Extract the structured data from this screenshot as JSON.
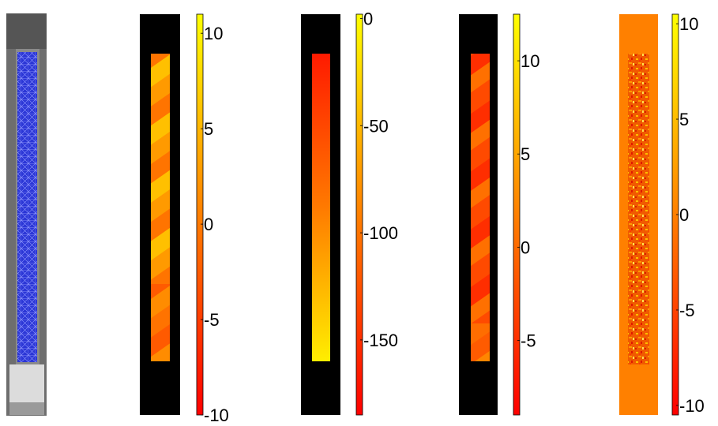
{
  "panels": [
    {
      "kind": "mesh-image",
      "description_colors": {
        "background": "#7a7a7a",
        "mesh": "#2a34d8",
        "grip": "#d9d9d9"
      }
    },
    {
      "kind": "field",
      "background": "#000000",
      "pattern": "diagonal-bands",
      "colorbar": {
        "min": -10,
        "max": 11,
        "ticks": [
          10,
          5,
          0,
          -5,
          -10
        ]
      },
      "field_range": [
        -7,
        8
      ]
    },
    {
      "kind": "field",
      "background": "#000000",
      "pattern": "vertical-gradient",
      "colorbar": {
        "min": -185,
        "max": 2,
        "ticks": [
          0,
          -50,
          -100,
          -150
        ]
      },
      "field_range": [
        -170,
        -5
      ]
    },
    {
      "kind": "field",
      "background": "#000000",
      "pattern": "diagonal-bands",
      "colorbar": {
        "min": -9,
        "max": 12.5,
        "ticks": [
          10,
          5,
          0,
          -5
        ]
      },
      "field_range": [
        -7,
        2
      ]
    },
    {
      "kind": "field",
      "background": "#ff8000",
      "pattern": "noise",
      "colorbar": {
        "min": -10.5,
        "max": 10.5,
        "ticks": [
          10,
          5,
          0,
          -5,
          -10
        ]
      },
      "field_range": [
        -9,
        9
      ]
    }
  ],
  "colormap": "autumn",
  "colors": {
    "colormap_low": "#ff0000",
    "colormap_high": "#ffff00"
  },
  "chart_data": [
    {
      "type": "heatmap",
      "colorbar_ticks": [
        10,
        5,
        0,
        -5,
        -10
      ],
      "clim": [
        -10,
        11
      ]
    },
    {
      "type": "heatmap",
      "colorbar_ticks": [
        0,
        -50,
        -100,
        -150
      ],
      "clim": [
        -185,
        2
      ]
    },
    {
      "type": "heatmap",
      "colorbar_ticks": [
        10,
        5,
        0,
        -5
      ],
      "clim": [
        -9,
        12.5
      ]
    },
    {
      "type": "heatmap",
      "colorbar_ticks": [
        10,
        5,
        0,
        -5,
        -10
      ],
      "clim": [
        -10.5,
        10.5
      ]
    }
  ]
}
